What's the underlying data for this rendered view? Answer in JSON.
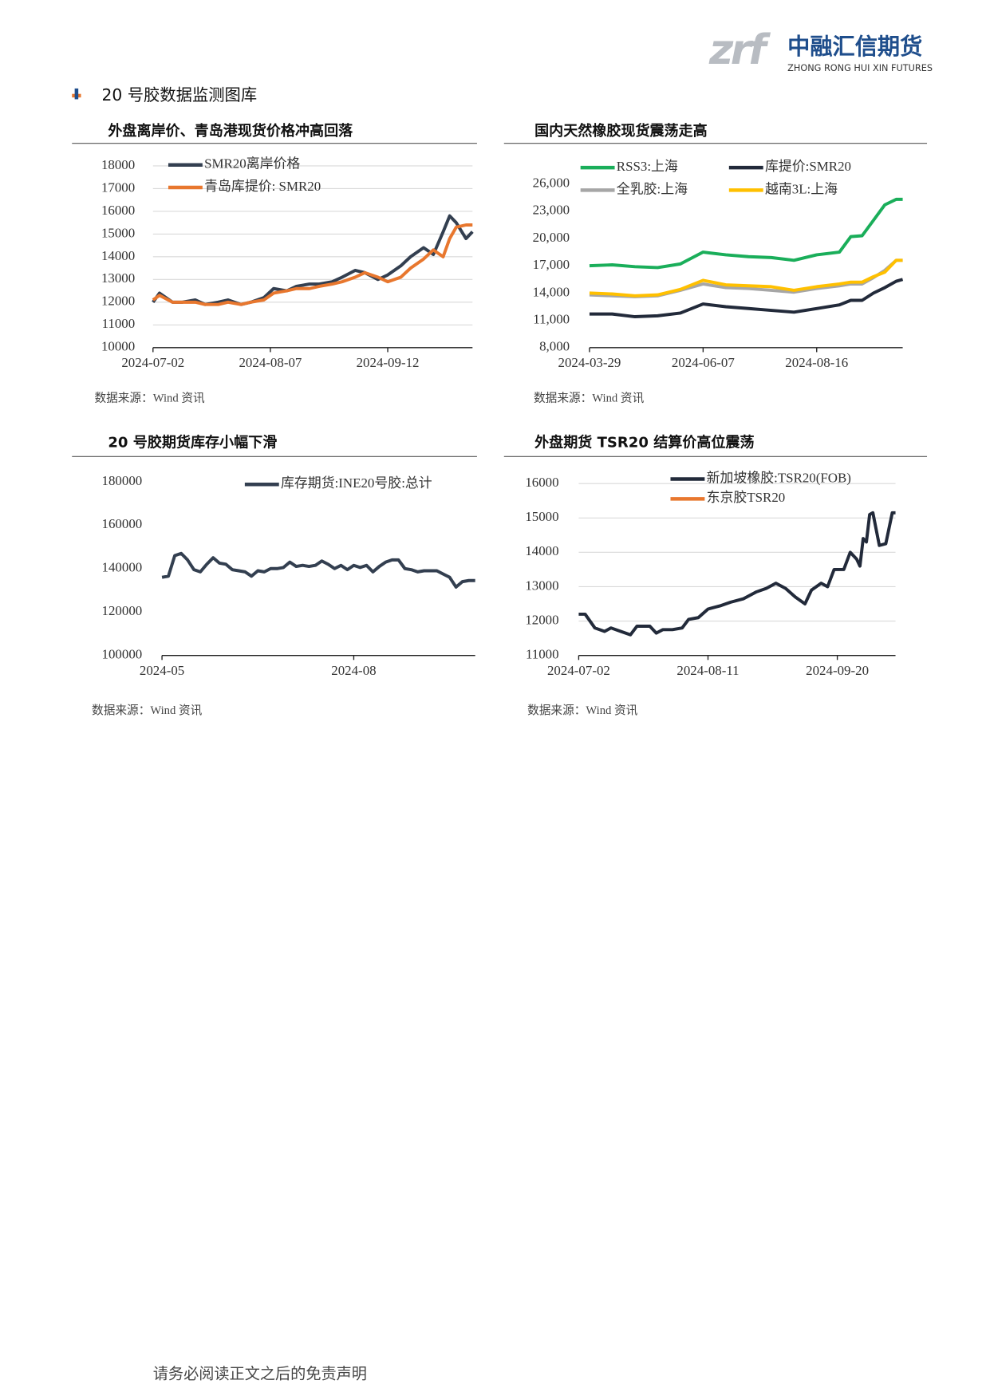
{
  "header": {
    "logo_mark": "zrf",
    "company": "中融汇信期货",
    "company_en": "ZHONG RONG HUI XIN FUTURES"
  },
  "section_title": "20 号胶数据监测图库",
  "chart_data": [
    {
      "type": "line",
      "title": "外盘离岸价、青岛港现货价格冲高回落",
      "source": "数据来源：Wind 资讯",
      "grid": true,
      "x": [
        "2024-07-02",
        "2024-07-04",
        "2024-07-08",
        "2024-07-11",
        "2024-07-15",
        "2024-07-18",
        "2024-07-22",
        "2024-07-25",
        "2024-07-29",
        "2024-08-01",
        "2024-08-05",
        "2024-08-08",
        "2024-08-12",
        "2024-08-15",
        "2024-08-19",
        "2024-08-22",
        "2024-08-26",
        "2024-08-29",
        "2024-09-02",
        "2024-09-05",
        "2024-09-09",
        "2024-09-12",
        "2024-09-16",
        "2024-09-19",
        "2024-09-23",
        "2024-09-26",
        "2024-09-29",
        "2024-10-01",
        "2024-10-03",
        "2024-10-06",
        "2024-10-08"
      ],
      "xlim": [
        "2024-07-02",
        "2024-10-08"
      ],
      "xticks": [
        "2024-07-02",
        "2024-08-07",
        "2024-09-12"
      ],
      "ylim": [
        10000,
        18000
      ],
      "yticks": [
        10000,
        11000,
        12000,
        13000,
        14000,
        15000,
        16000,
        17000,
        18000
      ],
      "series": [
        {
          "name": "SMR20离岸价格",
          "color": "#333f50",
          "values": [
            12000,
            12400,
            12000,
            12000,
            12100,
            11900,
            12000,
            12100,
            11900,
            12000,
            12200,
            12600,
            12500,
            12700,
            12800,
            12800,
            12900,
            13100,
            13400,
            13300,
            13000,
            13200,
            13600,
            14000,
            14400,
            14100,
            15100,
            15800,
            15500,
            14800,
            15100
          ]
        },
        {
          "name": "青岛库提价: SMR20",
          "color": "#e8772e",
          "values": [
            12100,
            12300,
            12000,
            12000,
            12000,
            11900,
            11900,
            12000,
            11900,
            12000,
            12100,
            12400,
            12500,
            12600,
            12600,
            12700,
            12800,
            12900,
            13100,
            13300,
            13100,
            12900,
            13100,
            13500,
            13900,
            14300,
            14000,
            14800,
            15300,
            15400,
            15400
          ]
        }
      ]
    },
    {
      "type": "line",
      "title": "国内天然橡胶现货震荡走高",
      "source": "数据来源：Wind 资讯",
      "grid": false,
      "x": [
        "2024-03-29",
        "2024-04-12",
        "2024-04-26",
        "2024-05-10",
        "2024-05-24",
        "2024-06-07",
        "2024-06-21",
        "2024-07-05",
        "2024-07-19",
        "2024-08-02",
        "2024-08-16",
        "2024-08-30",
        "2024-09-06",
        "2024-09-13",
        "2024-09-20",
        "2024-09-27",
        "2024-10-04",
        "2024-10-08"
      ],
      "xlim": [
        "2024-03-29",
        "2024-10-08"
      ],
      "xticks": [
        "2024-03-29",
        "2024-06-07",
        "2024-08-16"
      ],
      "ylim": [
        8000,
        26000
      ],
      "yticks": [
        {
          "value": 8000,
          "label": "8,000"
        },
        {
          "value": 11000,
          "label": "11,000"
        },
        {
          "value": 14000,
          "label": "14,000"
        },
        {
          "value": 17000,
          "label": "17,000"
        },
        {
          "value": 20000,
          "label": "20,000"
        },
        {
          "value": 23000,
          "label": "23,000"
        },
        {
          "value": 26000,
          "label": "26,000"
        }
      ],
      "series": [
        {
          "name": "RSS3:上海",
          "color": "#1aae5a",
          "values": [
            17000,
            17100,
            16900,
            16800,
            17200,
            18500,
            18200,
            18000,
            17900,
            17600,
            18200,
            18500,
            20200,
            20300,
            22000,
            23700,
            24300,
            24300
          ]
        },
        {
          "name": "库提价:SMR20",
          "color": "#222a3a",
          "values": [
            11700,
            11700,
            11400,
            11500,
            11800,
            12800,
            12500,
            12300,
            12100,
            11900,
            12300,
            12700,
            13200,
            13200,
            14000,
            14600,
            15300,
            15500
          ]
        },
        {
          "name": "全乳胶:上海",
          "color": "#a6a6a6",
          "values": [
            13800,
            13700,
            13600,
            13700,
            14300,
            15000,
            14600,
            14500,
            14300,
            14100,
            14500,
            14800,
            15000,
            15000,
            15700,
            16500,
            17600,
            17600
          ]
        },
        {
          "name": "越南3L:上海",
          "color": "#ffc000",
          "values": [
            14000,
            13900,
            13700,
            13800,
            14400,
            15400,
            14900,
            14800,
            14700,
            14300,
            14700,
            15000,
            15200,
            15200,
            15800,
            16300,
            17600,
            17600
          ]
        }
      ]
    },
    {
      "type": "line",
      "title": "20 号胶期货库存小幅下滑",
      "source": "数据来源：Wind 资讯",
      "grid": false,
      "categories": [
        "2024-05",
        null,
        null,
        null,
        null,
        null,
        null,
        null,
        null,
        null,
        null,
        null,
        null,
        null,
        null,
        null,
        null,
        null,
        null,
        null,
        null,
        null,
        null,
        null,
        null,
        null,
        null,
        null,
        null,
        null,
        "2024-08",
        null,
        null,
        null,
        null,
        null,
        null,
        null,
        null,
        null,
        null,
        null,
        null,
        null,
        null,
        null,
        null,
        null,
        null,
        null
      ],
      "ylim": [
        100000,
        180000
      ],
      "yticks": [
        100000,
        120000,
        140000,
        160000,
        180000
      ],
      "series": [
        {
          "name": "库存期货:INE20号胶:总计",
          "color": "#333f50",
          "values": [
            136000,
            136500,
            146000,
            147000,
            144000,
            139500,
            138500,
            142000,
            145000,
            142500,
            142000,
            139500,
            139000,
            138500,
            136500,
            139000,
            138500,
            140000,
            140000,
            140500,
            143000,
            141000,
            141500,
            141000,
            141500,
            143500,
            142000,
            140000,
            141500,
            139500,
            141500,
            140500,
            141500,
            138500,
            141000,
            143000,
            144000,
            144000,
            140000,
            139500,
            138500,
            139000,
            139000,
            139000,
            137500,
            136000,
            131500,
            134000,
            134500,
            134500
          ]
        }
      ]
    },
    {
      "type": "line",
      "title": "外盘期货 TSR20 结算价高位震荡",
      "source": "数据来源：Wind 资讯",
      "grid": true,
      "x": [
        "2024-07-02",
        "2024-07-04",
        "2024-07-07",
        "2024-07-10",
        "2024-07-12",
        "2024-07-15",
        "2024-07-18",
        "2024-07-20",
        "2024-07-24",
        "2024-07-26",
        "2024-07-28",
        "2024-07-31",
        "2024-08-03",
        "2024-08-05",
        "2024-08-08",
        "2024-08-11",
        "2024-08-15",
        "2024-08-18",
        "2024-08-22",
        "2024-08-26",
        "2024-08-29",
        "2024-09-01",
        "2024-09-04",
        "2024-09-07",
        "2024-09-10",
        "2024-09-12",
        "2024-09-15",
        "2024-09-17",
        "2024-09-19",
        "2024-09-22",
        "2024-09-24",
        "2024-09-26",
        "2024-09-27",
        "2024-09-28",
        "2024-09-29",
        "2024-09-30",
        "2024-10-01",
        "2024-10-03",
        "2024-10-05",
        "2024-10-07",
        "2024-10-08"
      ],
      "xlim": [
        "2024-07-02",
        "2024-10-08"
      ],
      "xticks": [
        "2024-07-02",
        "2024-08-11",
        "2024-09-20"
      ],
      "ylim": [
        11000,
        16000
      ],
      "yticks": [
        11000,
        12000,
        13000,
        14000,
        15000,
        16000
      ],
      "series": [
        {
          "name": "新加坡橡胶:TSR20(FOB)",
          "color": "#222a3a",
          "values": [
            12200,
            12200,
            11800,
            11700,
            11800,
            11700,
            11600,
            11850,
            11850,
            11650,
            11750,
            11750,
            11800,
            12050,
            12100,
            12350,
            12450,
            12550,
            12650,
            12850,
            12950,
            13100,
            12950,
            12700,
            12500,
            12900,
            13100,
            13000,
            13500,
            13500,
            14000,
            13800,
            13600,
            14400,
            14300,
            15100,
            15150,
            14200,
            14250,
            15150,
            15150
          ]
        },
        {
          "name": "东京胶TSR20",
          "color": "#e8772e",
          "values": [
            null,
            null,
            null,
            null,
            null,
            null,
            null,
            null,
            null,
            null,
            null,
            null,
            null,
            null,
            null,
            null,
            null,
            null,
            null,
            null,
            null,
            null,
            null,
            null,
            null,
            null,
            null,
            null,
            null,
            null,
            null,
            null,
            null,
            null,
            null,
            null,
            null,
            null,
            null,
            null,
            null
          ]
        }
      ]
    }
  ],
  "footer": "请务必阅读正文之后的免责声明"
}
